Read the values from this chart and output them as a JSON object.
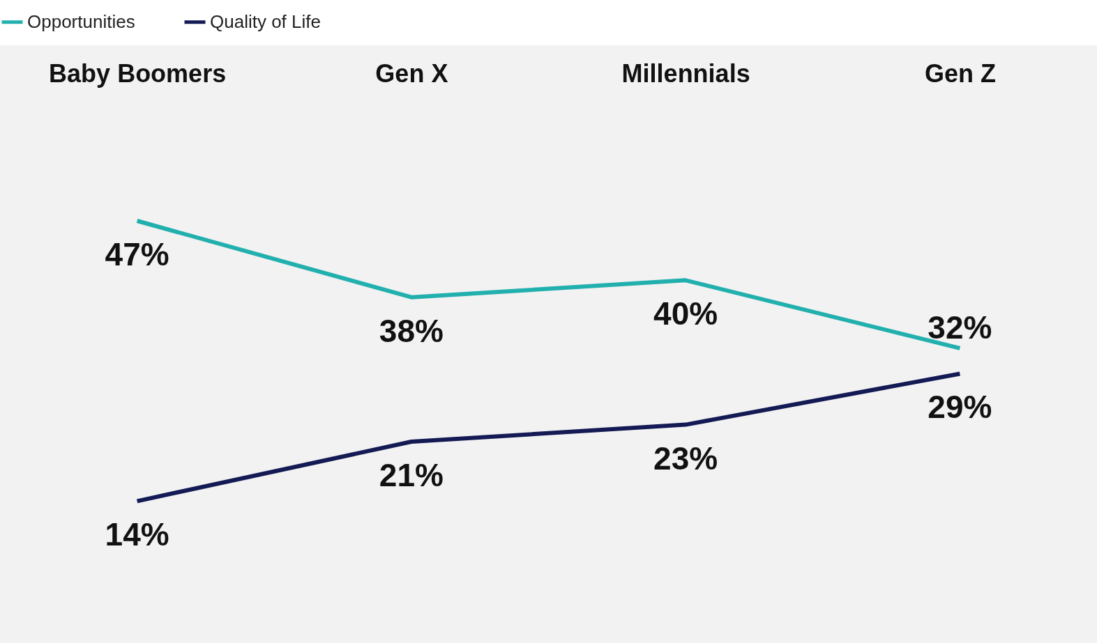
{
  "chart_data": {
    "type": "line",
    "categories": [
      "Baby Boomers",
      "Gen X",
      "Millennials",
      "Gen Z"
    ],
    "series": [
      {
        "name": "Opportunities",
        "color": "#22b0ae",
        "values": [
          47,
          38,
          40,
          32
        ],
        "value_labels": [
          "47%",
          "38%",
          "40%",
          "32%"
        ]
      },
      {
        "name": "Quality of Life",
        "color": "#141a54",
        "values": [
          14,
          21,
          23,
          29
        ],
        "value_labels": [
          "14%",
          "21%",
          "23%",
          "29%"
        ]
      }
    ],
    "legend": "top left",
    "tick_labels": "x",
    "grid": false,
    "marker": "none",
    "line_style": "solid"
  }
}
